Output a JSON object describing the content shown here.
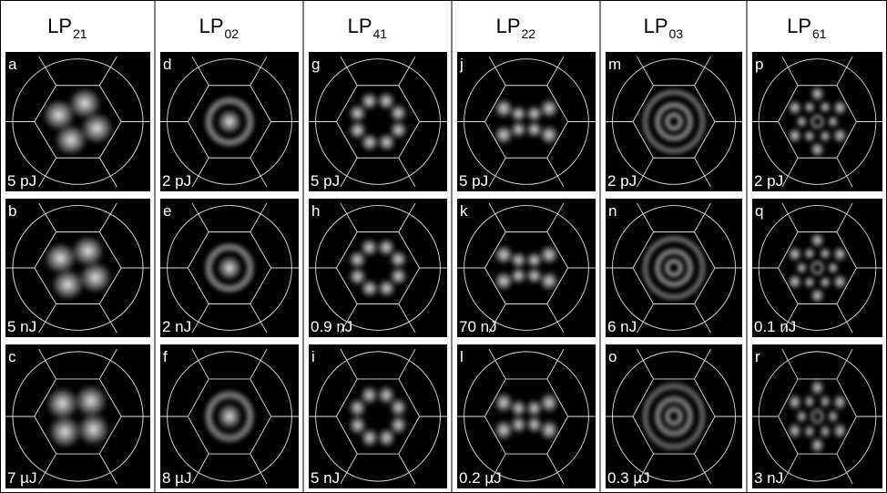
{
  "columns": [
    {
      "mode": "LP",
      "index": "21",
      "panels": [
        {
          "letter": "a",
          "energy": "5 pJ"
        },
        {
          "letter": "b",
          "energy": "5 nJ"
        },
        {
          "letter": "c",
          "energy": "7 µJ"
        }
      ]
    },
    {
      "mode": "LP",
      "index": "02",
      "panels": [
        {
          "letter": "d",
          "energy": "2 pJ"
        },
        {
          "letter": "e",
          "energy": "2 nJ"
        },
        {
          "letter": "f",
          "energy": "8 µJ"
        }
      ]
    },
    {
      "mode": "LP",
      "index": "41",
      "panels": [
        {
          "letter": "g",
          "energy": "5 pJ"
        },
        {
          "letter": "h",
          "energy": "0.9 nJ"
        },
        {
          "letter": "i",
          "energy": "5 nJ"
        }
      ]
    },
    {
      "mode": "LP",
      "index": "22",
      "panels": [
        {
          "letter": "j",
          "energy": "5 pJ"
        },
        {
          "letter": "k",
          "energy": "70 nJ"
        },
        {
          "letter": "l",
          "energy": "0.2 µJ"
        }
      ]
    },
    {
      "mode": "LP",
      "index": "03",
      "panels": [
        {
          "letter": "m",
          "energy": "2 pJ"
        },
        {
          "letter": "n",
          "energy": "6 nJ"
        },
        {
          "letter": "o",
          "energy": "0.3 µJ"
        }
      ]
    },
    {
      "mode": "LP",
      "index": "61",
      "panels": [
        {
          "letter": "p",
          "energy": "2 pJ"
        },
        {
          "letter": "q",
          "energy": "0.1 nJ"
        },
        {
          "letter": "r",
          "energy": "3 nJ"
        }
      ]
    }
  ]
}
